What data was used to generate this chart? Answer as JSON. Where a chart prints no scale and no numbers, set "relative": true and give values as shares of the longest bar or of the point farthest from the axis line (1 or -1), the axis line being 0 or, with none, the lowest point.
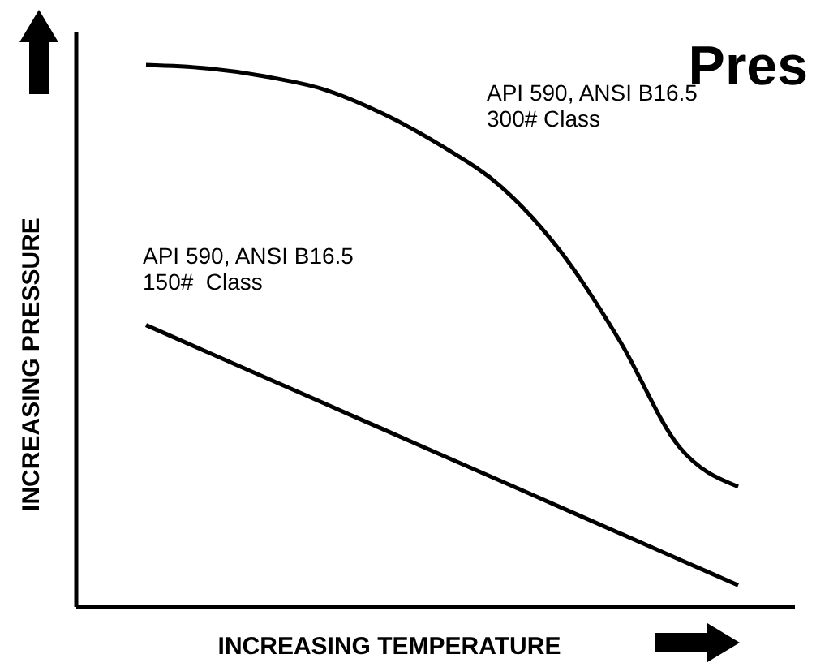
{
  "chart_data": {
    "type": "line",
    "title": "Pres",
    "xlabel": "INCREASING TEMPERATURE",
    "ylabel": "INCREASING PRESSURE",
    "relative": true,
    "categories": [
      null,
      null,
      null,
      null,
      null,
      null,
      null,
      null,
      null,
      null,
      null
    ],
    "marker": "none",
    "line_style": "solid",
    "series": [
      {
        "name": "API 590, ANSI B16.5\n300# Class",
        "color": "#000000",
        "values": [
          1,
          0.994,
          0.979,
          0.955,
          0.91,
          0.85,
          0.775,
          0.656,
          0.491,
          0.296,
          0.222
        ]
      },
      {
        "name": "API 590, ANSI B16.5\n150#  Class",
        "color": "#000000",
        "values": [
          0.52,
          0.472,
          0.424,
          0.376,
          0.328,
          0.28,
          0.232,
          0.184,
          0.136,
          0.088,
          0.04
        ]
      }
    ]
  }
}
